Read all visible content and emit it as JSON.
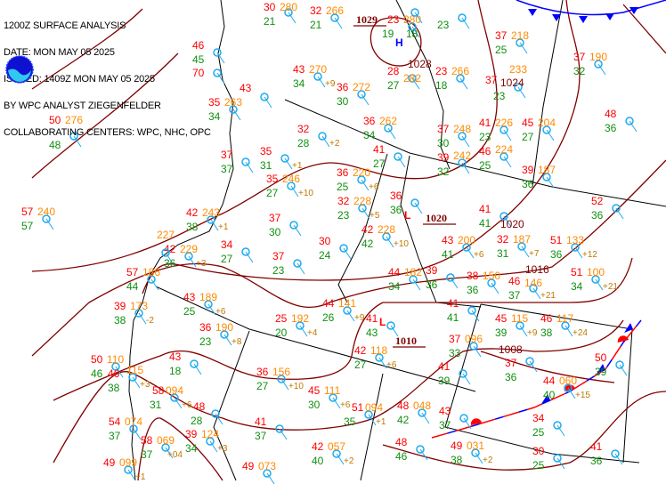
{
  "header": {
    "lines": [
      "1200Z SURFACE ANALYSIS",
      "DATE: MON MAY 05 2025",
      "ISSUED: 1409Z MON MAY 05 2025",
      "BY WPC ANALYST ZIEGENFELDER",
      "COLLABORATING CENTERS: WPC, NHC, OPC"
    ]
  },
  "logo": {
    "name": "noaa-logo",
    "text": "NOAA"
  },
  "colors": {
    "temperature": "#ff0000",
    "dewpoint": "#109010",
    "pressure": "#ff8a00",
    "tendency": "#c07800",
    "isobar": "#800000",
    "station": "#1eaaf0",
    "high": "#0000ff",
    "low": "#ff0000",
    "cold_front": "#0000ff",
    "warm_front": "#ff0000"
  },
  "pressure_centers": [
    {
      "type": "H",
      "label": "1029"
    },
    {
      "type": "L",
      "label": "1020"
    },
    {
      "type": "L",
      "label": "1010"
    }
  ],
  "isobar_labels": [
    "1028",
    "1024",
    "1020",
    "1016",
    "1008"
  ],
  "stations": [
    {
      "t": "30",
      "td": "21",
      "p": "280",
      "tend": ""
    },
    {
      "t": "32",
      "td": "21",
      "p": "266",
      "tend": ""
    },
    {
      "t": "23",
      "td": "19",
      "p": "280",
      "tend": ""
    },
    {
      "t": "",
      "td": "18",
      "p": "",
      "tend": ""
    },
    {
      "t": "",
      "td": "23",
      "p": "",
      "tend": ""
    },
    {
      "t": "43",
      "td": "34",
      "p": "270",
      "tend": "+9"
    },
    {
      "t": "36",
      "td": "30",
      "p": "272",
      "tend": ""
    },
    {
      "t": "28",
      "td": "27",
      "p": "282",
      "tend": ""
    },
    {
      "t": "23",
      "td": "18",
      "p": "266",
      "tend": ""
    },
    {
      "t": "36",
      "td": "34",
      "p": "262",
      "tend": ""
    },
    {
      "t": "37",
      "td": "30",
      "p": "248",
      "tend": ""
    },
    {
      "t": "41",
      "td": "23",
      "p": "226",
      "tend": ""
    },
    {
      "t": "46",
      "td": "25",
      "p": "224",
      "tend": ""
    },
    {
      "t": "39",
      "td": "32",
      "p": "242",
      "tend": ""
    },
    {
      "t": "37",
      "td": "25",
      "p": "218",
      "tend": ""
    },
    {
      "t": "37",
      "td": "23",
      "p": "233",
      "tend": ""
    },
    {
      "t": "45",
      "td": "27",
      "p": "204",
      "tend": ""
    },
    {
      "t": "37",
      "td": "32",
      "p": "190",
      "tend": ""
    },
    {
      "t": "48",
      "td": "36",
      "p": "",
      "tend": ""
    },
    {
      "t": "39",
      "td": "36",
      "p": "187",
      "tend": ""
    },
    {
      "t": "52",
      "td": "36",
      "p": "",
      "tend": ""
    },
    {
      "t": "41",
      "td": "41",
      "p": "",
      "tend": ""
    },
    {
      "t": "32",
      "td": "31",
      "p": "187",
      "tend": "+7"
    },
    {
      "t": "43",
      "td": "41",
      "p": "200",
      "tend": "+6"
    },
    {
      "t": "51",
      "td": "36",
      "p": "133",
      "tend": "+12"
    },
    {
      "t": "51",
      "td": "34",
      "p": "100",
      "tend": "+21"
    },
    {
      "t": "46",
      "td": "37",
      "p": "146",
      "tend": "+21"
    },
    {
      "t": "38",
      "td": "36",
      "p": "150",
      "tend": ""
    },
    {
      "t": "39",
      "td": "36",
      "p": "",
      "tend": ""
    },
    {
      "t": "44",
      "td": "34",
      "p": "182",
      "tend": ""
    },
    {
      "t": "42",
      "td": "42",
      "p": "228",
      "tend": "+10"
    },
    {
      "t": "32",
      "td": "23",
      "p": "228",
      "tend": "+5"
    },
    {
      "t": "36",
      "td": "25",
      "p": "220",
      "tend": "+6"
    },
    {
      "t": "35",
      "td": "27",
      "p": "246",
      "tend": "+10"
    },
    {
      "t": "36",
      "td": "36",
      "p": "",
      "tend": ""
    },
    {
      "t": "30",
      "td": "24",
      "p": "",
      "tend": ""
    },
    {
      "t": "37",
      "td": "23",
      "p": "",
      "tend": ""
    },
    {
      "t": "34",
      "td": "27",
      "p": "",
      "tend": ""
    },
    {
      "t": "37",
      "td": "30",
      "p": "",
      "tend": ""
    },
    {
      "t": "32",
      "td": "28",
      "p": "",
      "tend": "+2"
    },
    {
      "t": "35",
      "td": "31",
      "p": "",
      "tend": "+1"
    },
    {
      "t": "37",
      "td": "37",
      "p": "",
      "tend": ""
    },
    {
      "t": "35",
      "td": "34",
      "p": "263",
      "tend": ""
    },
    {
      "t": "42",
      "td": "38",
      "p": "243",
      "tend": "+1"
    },
    {
      "t": "41",
      "td": "27",
      "p": "",
      "tend": ""
    },
    {
      "t": "57",
      "td": "57",
      "p": "240",
      "tend": ""
    },
    {
      "t": "50",
      "td": "48",
      "p": "276",
      "tend": ""
    },
    {
      "t": "42",
      "td": "36",
      "p": "229",
      "tend": "+3"
    },
    {
      "t": "57",
      "td": "44",
      "p": "186",
      "tend": ""
    },
    {
      "t": "39",
      "td": "38",
      "p": "173",
      "tend": "-2"
    },
    {
      "t": "43",
      "td": "25",
      "p": "189",
      "tend": "+6"
    },
    {
      "t": "36",
      "td": "23",
      "p": "190",
      "tend": "+8"
    },
    {
      "t": "25",
      "td": "20",
      "p": "192",
      "tend": "+4"
    },
    {
      "t": "50",
      "td": "46",
      "p": "110",
      "tend": ""
    },
    {
      "t": "46",
      "td": "38",
      "p": "115",
      "tend": "+3"
    },
    {
      "t": "43",
      "td": "18",
      "p": "",
      "tend": ""
    },
    {
      "t": "58",
      "td": "31",
      "p": "094",
      "tend": "+6"
    },
    {
      "t": "48",
      "td": "28",
      "p": "",
      "tend": ""
    },
    {
      "t": "41",
      "td": "37",
      "p": "",
      "tend": ""
    },
    {
      "t": "36",
      "td": "27",
      "p": "156",
      "tend": "+10"
    },
    {
      "t": "45",
      "td": "30",
      "p": "111",
      "tend": "+6"
    },
    {
      "t": "51",
      "td": "35",
      "p": "094",
      "tend": "+1"
    },
    {
      "t": "48",
      "td": "42",
      "p": "048",
      "tend": ""
    },
    {
      "t": "42",
      "td": "27",
      "p": "118",
      "tend": "+6"
    },
    {
      "t": "41",
      "td": "43",
      "p": "",
      "tend": ""
    },
    {
      "t": "44",
      "td": "26",
      "p": "141",
      "tend": "+9"
    },
    {
      "t": "41",
      "td": "41",
      "p": "",
      "tend": ""
    },
    {
      "t": "45",
      "td": "39",
      "p": "115",
      "tend": "+9"
    },
    {
      "t": "46",
      "td": "38",
      "p": "117",
      "tend": "+24"
    },
    {
      "t": "37",
      "td": "33",
      "p": "096",
      "tend": ""
    },
    {
      "t": "37",
      "td": "36",
      "p": "",
      "tend": ""
    },
    {
      "t": "41",
      "td": "39",
      "p": "",
      "tend": ""
    },
    {
      "t": "50",
      "td": "39",
      "p": "",
      "tend": ""
    },
    {
      "t": "44",
      "td": "40",
      "p": "060",
      "tend": "+15"
    },
    {
      "t": "43",
      "td": "37",
      "p": "",
      "tend": ""
    },
    {
      "t": "34",
      "td": "25",
      "p": "",
      "tend": ""
    },
    {
      "t": "48",
      "td": "46",
      "p": "",
      "tend": ""
    },
    {
      "t": "49",
      "td": "38",
      "p": "031",
      "tend": "+2"
    },
    {
      "t": "30",
      "td": "25",
      "p": "",
      "tend": ""
    },
    {
      "t": "41",
      "td": "36",
      "p": "",
      "tend": ""
    },
    {
      "t": "42",
      "td": "40",
      "p": "057",
      "tend": "+2"
    },
    {
      "t": "49",
      "td": "",
      "p": "073",
      "tend": ""
    },
    {
      "t": "39",
      "td": "34",
      "p": "124",
      "tend": "+3"
    },
    {
      "t": "58",
      "td": "37",
      "p": "069",
      "tend": "+04"
    },
    {
      "t": "49",
      "td": "",
      "p": "099",
      "tend": "+1"
    },
    {
      "t": "54",
      "td": "37",
      "p": "074",
      "tend": ""
    },
    {
      "t": "",
      "td": "",
      "p": "227",
      "tend": ""
    },
    {
      "t": "46",
      "td": "45",
      "p": "",
      "tend": ""
    },
    {
      "t": "70",
      "td": "",
      "p": "",
      "tend": ""
    },
    {
      "t": "43",
      "td": "",
      "p": "",
      "tend": ""
    }
  ]
}
